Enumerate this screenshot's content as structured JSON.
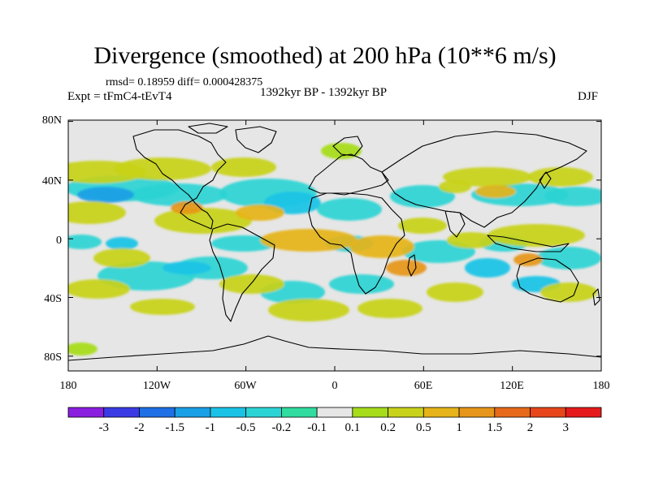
{
  "title": "Divergence (smoothed) at 200 hPa (10**6 m/s)",
  "stats": "rmsd= 0.18959 diff= 0.000428375",
  "expt": "Expt = tFmC4-tEvT4",
  "period": "1392kyr BP - 1392kyr BP",
  "season": "DJF",
  "lat_ticks": [
    "80N",
    "40N",
    "0",
    "40S",
    "80S"
  ],
  "lon_ticks": [
    "180",
    "120W",
    "60W",
    "0",
    "60E",
    "120E",
    "180"
  ],
  "colorbar": {
    "labels": [
      "-3",
      "-2",
      "-1.5",
      "-1",
      "-0.5",
      "-0.2",
      "-0.1",
      "0.1",
      "0.2",
      "0.5",
      "1",
      "1.5",
      "2",
      "3"
    ],
    "colors": [
      "#8a1fe0",
      "#3b3be6",
      "#1f6fe6",
      "#1aa0e6",
      "#1ac3e6",
      "#2bd4d4",
      "#30dca0",
      "#e6e6e6",
      "#a6dc1a",
      "#c8d21a",
      "#e6b41a",
      "#e6961a",
      "#e66a1a",
      "#e6461a",
      "#e61a1a"
    ]
  },
  "map": {
    "background_color": "#e6e6e6",
    "land_outline_color": "#000000"
  }
}
